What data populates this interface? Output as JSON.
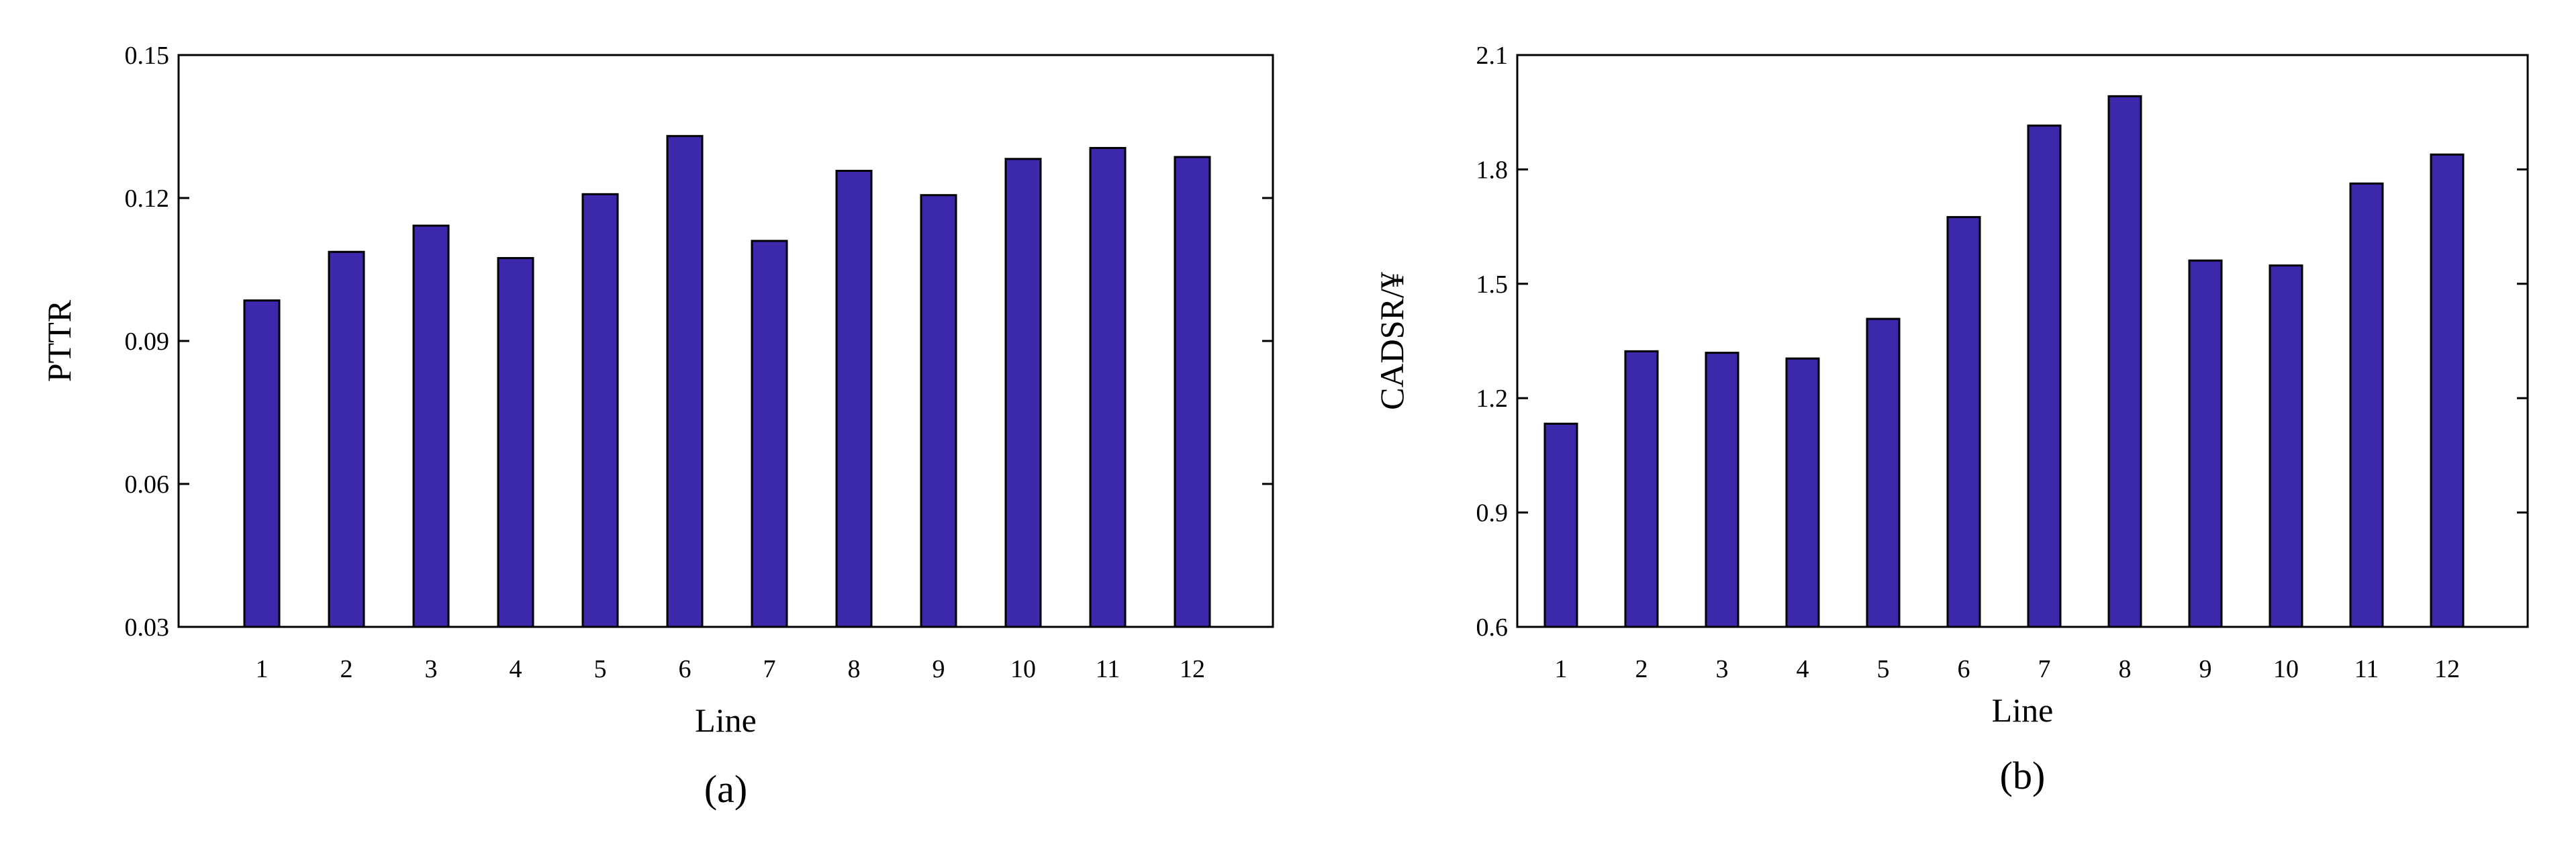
{
  "colors": {
    "bar_fill": "#3c28aa",
    "bar_stroke": "#000000",
    "axis": "#000000"
  },
  "chart_data": [
    {
      "type": "bar",
      "caption": "(a)",
      "xlabel": "Line",
      "ylabel": "PTTR",
      "categories": [
        "1",
        "2",
        "3",
        "4",
        "5",
        "6",
        "7",
        "8",
        "9",
        "10",
        "11",
        "12"
      ],
      "values": [
        0.0985,
        0.1087,
        0.1142,
        0.1074,
        0.1208,
        0.133,
        0.111,
        0.1257,
        0.1206,
        0.1282,
        0.1305,
        0.1286
      ],
      "ylim": [
        0.03,
        0.15
      ],
      "yticks": [
        0.03,
        0.06,
        0.09,
        0.12,
        0.15
      ],
      "ytick_labels": [
        "0.03",
        "0.06",
        "0.09",
        "0.12",
        "0.15"
      ],
      "grid": false,
      "legend": "none"
    },
    {
      "type": "bar",
      "caption": "(b)",
      "xlabel": "Line",
      "ylabel": "CADSR/¥",
      "categories": [
        "1",
        "2",
        "3",
        "4",
        "5",
        "6",
        "7",
        "8",
        "9",
        "10",
        "11",
        "12"
      ],
      "values": [
        1.133,
        1.323,
        1.319,
        1.304,
        1.408,
        1.675,
        1.915,
        1.992,
        1.561,
        1.548,
        1.763,
        1.839
      ],
      "ylim": [
        0.6,
        2.1
      ],
      "yticks": [
        0.6,
        0.9,
        1.2,
        1.5,
        1.8,
        2.1
      ],
      "ytick_labels": [
        "0.6",
        "0.9",
        "1.2",
        "1.5",
        "1.8",
        "2.1"
      ],
      "grid": false,
      "legend": "none"
    }
  ]
}
